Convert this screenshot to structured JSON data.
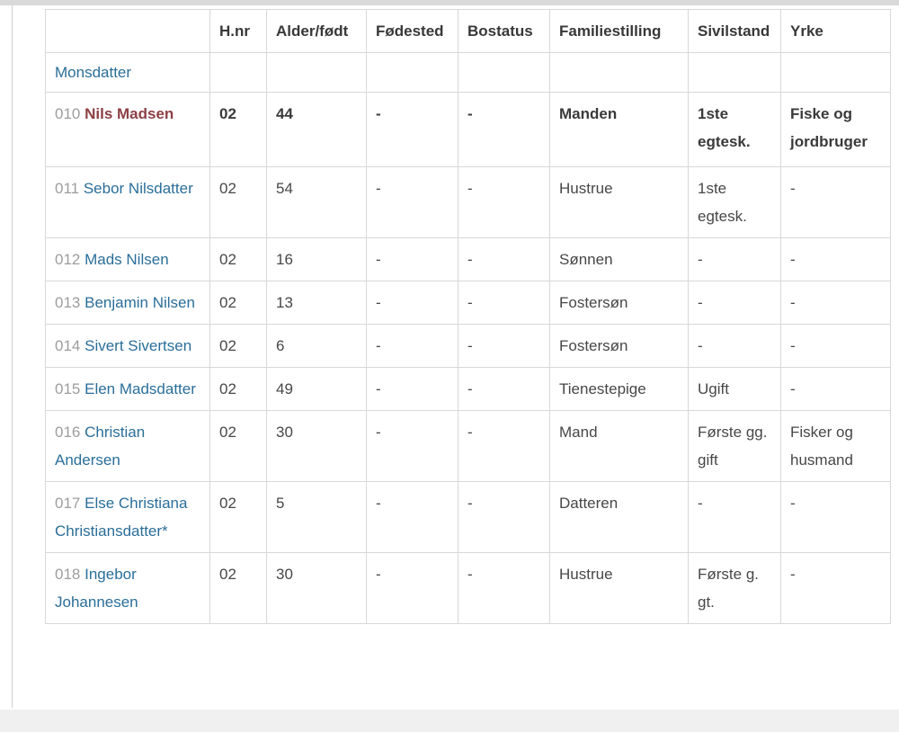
{
  "colors": {
    "link-blue": "#2a6e99",
    "selected-name": "#8d4045",
    "row-id-gray": "#9d9d9d",
    "text": "#474747",
    "header-text": "#383838",
    "border": "#d8d8d8",
    "strip": "#d9d9d9",
    "bottom-bg": "#f0f0f0"
  },
  "table": {
    "columns": [
      {
        "key": "name",
        "label": ""
      },
      {
        "key": "hnr",
        "label": "H.nr"
      },
      {
        "key": "alder",
        "label": "Alder/født"
      },
      {
        "key": "fodested",
        "label": "Fødested"
      },
      {
        "key": "bostatus",
        "label": "Bostatus"
      },
      {
        "key": "familiestilling",
        "label": "Familiestilling"
      },
      {
        "key": "sivilstand",
        "label": "Sivilstand"
      },
      {
        "key": "yrke",
        "label": "Yrke"
      }
    ],
    "continuation": {
      "name_fragment": "Monsdatter"
    },
    "rows": [
      {
        "id": "010",
        "name": "Nils Madsen",
        "selected": true,
        "hnr": "02",
        "alder": "44",
        "fodested": "-",
        "bostatus": "-",
        "familiestilling": "Manden",
        "sivilstand": "1ste egtesk.",
        "yrke": "Fiske og jordbruger"
      },
      {
        "id": "011",
        "name": "Sebor Nilsdatter",
        "selected": false,
        "hnr": "02",
        "alder": "54",
        "fodested": "-",
        "bostatus": "-",
        "familiestilling": "Hustrue",
        "sivilstand": "1ste egtesk.",
        "yrke": "-"
      },
      {
        "id": "012",
        "name": "Mads Nilsen",
        "selected": false,
        "hnr": "02",
        "alder": "16",
        "fodested": "-",
        "bostatus": "-",
        "familiestilling": "Sønnen",
        "sivilstand": "-",
        "yrke": "-"
      },
      {
        "id": "013",
        "name": "Benjamin Nilsen",
        "selected": false,
        "hnr": "02",
        "alder": "13",
        "fodested": "-",
        "bostatus": "-",
        "familiestilling": "Fostersøn",
        "sivilstand": "-",
        "yrke": "-"
      },
      {
        "id": "014",
        "name": "Sivert Sivertsen",
        "selected": false,
        "hnr": "02",
        "alder": "6",
        "fodested": "-",
        "bostatus": "-",
        "familiestilling": "Fostersøn",
        "sivilstand": "-",
        "yrke": "-"
      },
      {
        "id": "015",
        "name": "Elen Madsdatter",
        "selected": false,
        "hnr": "02",
        "alder": "49",
        "fodested": "-",
        "bostatus": "-",
        "familiestilling": "Tienestepige",
        "sivilstand": "Ugift",
        "yrke": "-"
      },
      {
        "id": "016",
        "name": "Christian Andersen",
        "selected": false,
        "hnr": "02",
        "alder": "30",
        "fodested": "-",
        "bostatus": "-",
        "familiestilling": "Mand",
        "sivilstand": "Første gg. gift",
        "yrke": "Fisker og husmand"
      },
      {
        "id": "017",
        "name": "Else Christiana Christiansdatter*",
        "selected": false,
        "hnr": "02",
        "alder": "5",
        "fodested": "-",
        "bostatus": "-",
        "familiestilling": "Datteren",
        "sivilstand": "-",
        "yrke": "-"
      },
      {
        "id": "018",
        "name": "Ingebor Johannesen",
        "selected": false,
        "hnr": "02",
        "alder": "30",
        "fodested": "-",
        "bostatus": "-",
        "familiestilling": "Hustrue",
        "sivilstand": "Første g. gt.",
        "yrke": "-"
      }
    ]
  }
}
